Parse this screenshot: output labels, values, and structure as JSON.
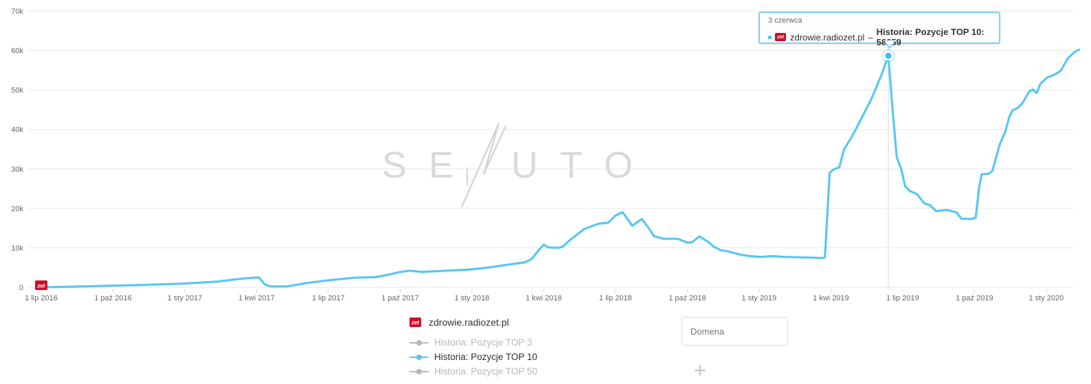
{
  "tooltip": {
    "date": "3 czerwca",
    "domain": "zdrowie.radiozet.pl",
    "separator": "–",
    "series_value": "Historia: Pozycje TOP 10: 58659"
  },
  "brand": {
    "icon_label": "zet",
    "color": "#ce0e2d"
  },
  "watermark": {
    "left": "SE",
    "right": "UTO"
  },
  "legend": {
    "domain": "zdrowie.radiozet.pl",
    "items": [
      {
        "label": "Historia: Pozycje TOP 3",
        "color": "#b7b7b7",
        "active": false
      },
      {
        "label": "Historia: Pozycje TOP 10",
        "color": "#58c7f2",
        "active": true
      },
      {
        "label": "Historia: Pozycje TOP 50",
        "color": "#b7b7b7",
        "active": false
      }
    ]
  },
  "controls": {
    "domain_input_placeholder": "Domena",
    "add_button": "+"
  },
  "colors": {
    "series_blue": "#58c7f2",
    "grid": "#e6e6e6",
    "crosshair": "#d8d8d8",
    "axis_text": "#666666",
    "tooltip_border": "#7ecff2",
    "brand_red": "#ce0e2d",
    "watermark_gray": "#d9d9d9"
  },
  "chart_data": {
    "type": "line",
    "title": "",
    "xlabel": "",
    "ylabel": "",
    "x_unit": "months since 2016-07-01",
    "ylim": [
      0,
      70000
    ],
    "grid": true,
    "legend_position": "bottom",
    "y_ticks": [
      {
        "v": 0,
        "label": "0"
      },
      {
        "v": 10000,
        "label": "10k"
      },
      {
        "v": 20000,
        "label": "20k"
      },
      {
        "v": 30000,
        "label": "30k"
      },
      {
        "v": 40000,
        "label": "40k"
      },
      {
        "v": 50000,
        "label": "50k"
      },
      {
        "v": 60000,
        "label": "60k"
      },
      {
        "v": 70000,
        "label": "70k"
      }
    ],
    "x_ticks": [
      {
        "m": 0,
        "label": "1 lip 2016"
      },
      {
        "m": 3,
        "label": "1 paź 2016"
      },
      {
        "m": 6,
        "label": "1 sty 2017"
      },
      {
        "m": 9,
        "label": "1 kwi 2017"
      },
      {
        "m": 12,
        "label": "1 lip 2017"
      },
      {
        "m": 15,
        "label": "1 paź 2017"
      },
      {
        "m": 18,
        "label": "1 sty 2018"
      },
      {
        "m": 21,
        "label": "1 kwi 2018"
      },
      {
        "m": 24,
        "label": "1 lip 2018"
      },
      {
        "m": 27,
        "label": "1 paź 2018"
      },
      {
        "m": 30,
        "label": "1 sty 2019"
      },
      {
        "m": 33,
        "label": "1 kwi 2019"
      },
      {
        "m": 36,
        "label": "1 lip 2019"
      },
      {
        "m": 39,
        "label": "1 paź 2019"
      },
      {
        "m": 42,
        "label": "1 sty 2020"
      }
    ],
    "series": [
      {
        "name": "Historia: Pozycje TOP 10",
        "color": "#58c7f2",
        "points": [
          [
            0,
            0
          ],
          [
            1.3,
            150
          ],
          [
            2.8,
            400
          ],
          [
            4.3,
            600
          ],
          [
            5.8,
            900
          ],
          [
            7.3,
            1400
          ],
          [
            8.4,
            2200
          ],
          [
            8.8,
            2400
          ],
          [
            9.1,
            2500
          ],
          [
            9.35,
            700
          ],
          [
            9.6,
            200
          ],
          [
            10.3,
            250
          ],
          [
            11.1,
            1100
          ],
          [
            11.9,
            1700
          ],
          [
            13.0,
            2400
          ],
          [
            14.0,
            2600
          ],
          [
            14.6,
            3300
          ],
          [
            15.0,
            3900
          ],
          [
            15.4,
            4200
          ],
          [
            15.9,
            3900
          ],
          [
            16.9,
            4200
          ],
          [
            17.9,
            4500
          ],
          [
            18.8,
            5100
          ],
          [
            19.7,
            5900
          ],
          [
            20.2,
            6300
          ],
          [
            20.5,
            7200
          ],
          [
            20.8,
            9500
          ],
          [
            21.0,
            10800
          ],
          [
            21.2,
            10100
          ],
          [
            21.6,
            10000
          ],
          [
            21.8,
            10300
          ],
          [
            22.1,
            12000
          ],
          [
            22.4,
            13400
          ],
          [
            22.7,
            14800
          ],
          [
            23.3,
            16100
          ],
          [
            23.7,
            16400
          ],
          [
            24.0,
            18200
          ],
          [
            24.3,
            19000
          ],
          [
            24.7,
            15600
          ],
          [
            25.1,
            17300
          ],
          [
            25.4,
            14900
          ],
          [
            25.6,
            13000
          ],
          [
            26.0,
            12300
          ],
          [
            26.6,
            12300
          ],
          [
            27.0,
            11300
          ],
          [
            27.2,
            11400
          ],
          [
            27.5,
            12900
          ],
          [
            27.9,
            11400
          ],
          [
            28.1,
            10300
          ],
          [
            28.4,
            9400
          ],
          [
            28.7,
            9100
          ],
          [
            29.0,
            8600
          ],
          [
            29.3,
            8200
          ],
          [
            29.6,
            7900
          ],
          [
            30.1,
            7700
          ],
          [
            30.5,
            7900
          ],
          [
            31.1,
            7700
          ],
          [
            31.7,
            7600
          ],
          [
            32.3,
            7500
          ],
          [
            32.64,
            7400
          ],
          [
            32.75,
            7600
          ],
          [
            32.95,
            29000
          ],
          [
            33.1,
            29800
          ],
          [
            33.35,
            30400
          ],
          [
            33.55,
            34900
          ],
          [
            33.9,
            38400
          ],
          [
            34.3,
            43100
          ],
          [
            34.7,
            47800
          ],
          [
            35.1,
            53600
          ],
          [
            35.28,
            56600
          ],
          [
            35.4,
            58659
          ],
          [
            35.55,
            47000
          ],
          [
            35.75,
            33000
          ],
          [
            35.95,
            29800
          ],
          [
            36.1,
            25600
          ],
          [
            36.3,
            24400
          ],
          [
            36.6,
            23600
          ],
          [
            36.9,
            21300
          ],
          [
            37.15,
            20800
          ],
          [
            37.4,
            19300
          ],
          [
            37.85,
            19600
          ],
          [
            38.25,
            19000
          ],
          [
            38.45,
            17400
          ],
          [
            38.85,
            17300
          ],
          [
            39.05,
            17600
          ],
          [
            39.2,
            25500
          ],
          [
            39.3,
            28600
          ],
          [
            39.6,
            28800
          ],
          [
            39.75,
            29500
          ],
          [
            40.05,
            36100
          ],
          [
            40.3,
            39600
          ],
          [
            40.45,
            43100
          ],
          [
            40.6,
            44900
          ],
          [
            40.8,
            45400
          ],
          [
            41.0,
            46600
          ],
          [
            41.3,
            49700
          ],
          [
            41.45,
            50100
          ],
          [
            41.6,
            49200
          ],
          [
            41.75,
            51500
          ],
          [
            42.05,
            53200
          ],
          [
            42.35,
            53900
          ],
          [
            42.6,
            54800
          ],
          [
            42.9,
            58000
          ],
          [
            43.2,
            59700
          ],
          [
            43.38,
            60200
          ]
        ]
      }
    ],
    "highlight": {
      "m": 35.4,
      "value": 58659,
      "date": "3 czerwca"
    }
  }
}
